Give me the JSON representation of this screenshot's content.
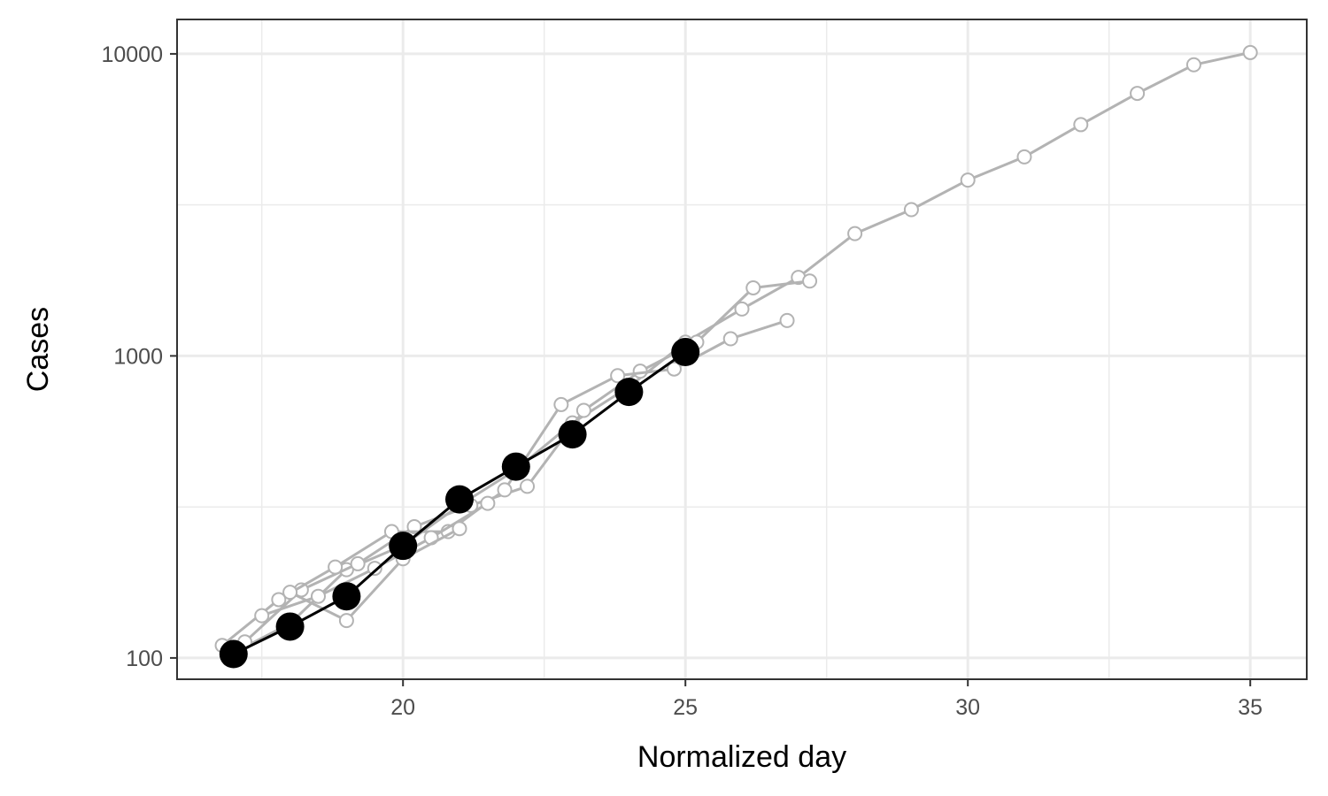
{
  "chart_data": {
    "type": "line",
    "xlabel": "Normalized day",
    "ylabel": "Cases",
    "xlim": [
      16.0,
      36.0
    ],
    "ylim": [
      85,
      13000
    ],
    "y_scale": "log10",
    "x_ticks": [
      20,
      25,
      30,
      35
    ],
    "x_tick_labels": [
      "20",
      "25",
      "30",
      "35"
    ],
    "x_minor_ticks": [
      17.5,
      22.5,
      27.5,
      32.5
    ],
    "y_ticks": [
      100,
      1000,
      10000
    ],
    "y_tick_labels": [
      "100",
      "1000",
      "10000"
    ],
    "y_minor_ticks": [
      316,
      3162
    ],
    "grid": true,
    "legend": "none",
    "colors": {
      "highlight": "#000000",
      "background_series": "#b3b3b3",
      "grid": "#ebebeb",
      "panel_border": "#333333"
    },
    "series": [
      {
        "role": "highlight",
        "x": [
          17,
          18,
          19,
          20,
          21,
          22,
          23,
          24,
          25
        ],
        "y": [
          103,
          127,
          160,
          235,
          335,
          430,
          550,
          760,
          1030
        ]
      },
      {
        "role": "background",
        "x": [
          17,
          18,
          19,
          20,
          21,
          22,
          23,
          24,
          25,
          26,
          27,
          28,
          29,
          30,
          31,
          32,
          33,
          34,
          35
        ],
        "y": [
          104,
          130,
          196,
          236,
          320,
          420,
          600,
          790,
          1110,
          1430,
          1820,
          2540,
          3050,
          3820,
          4560,
          5830,
          7400,
          9200,
          10100
        ]
      },
      {
        "role": "background",
        "x": [
          17.2,
          18.2,
          19.2,
          20.2,
          21.2,
          22.2,
          23.2,
          24.2,
          25.2,
          26.2,
          27.2
        ],
        "y": [
          113,
          168,
          205,
          272,
          320,
          370,
          660,
          890,
          1110,
          1680,
          1770
        ]
      },
      {
        "role": "background",
        "x": [
          16.8,
          17.8,
          18.8,
          19.8,
          20.8,
          21.8,
          22.8,
          23.8,
          24.8,
          25.8,
          26.8
        ],
        "y": [
          110,
          156,
          200,
          262,
          262,
          360,
          690,
          860,
          905,
          1140,
          1310
        ]
      },
      {
        "role": "background",
        "x": [
          17.5,
          18.5,
          19.5,
          20.5,
          21.5
        ],
        "y": [
          138,
          160,
          198,
          250,
          325
        ]
      },
      {
        "role": "background",
        "x": [
          18.0,
          19.0,
          20.0,
          21.0
        ],
        "y": [
          165,
          133,
          213,
          268
        ]
      }
    ]
  }
}
